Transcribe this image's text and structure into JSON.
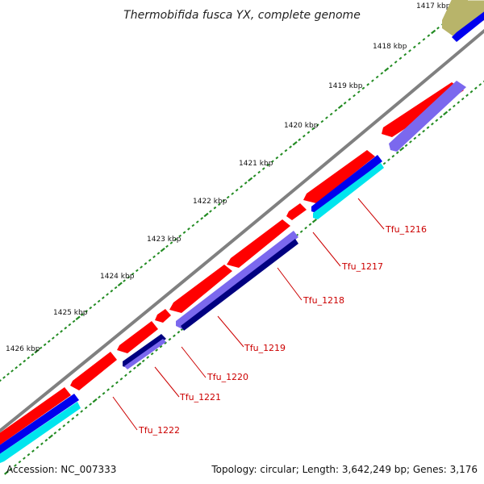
{
  "title": "Thermobifida fusca YX, complete genome",
  "footer": {
    "accession": "Accession: NC_007333",
    "summary": "Topology: circular; Length: 3,642,249 bp; Genes: 3,176"
  },
  "kbp_labels": [
    "1417 kbp",
    "1418 kbp",
    "1419 kbp",
    "1420 kbp",
    "1421 kbp",
    "1422 kbp",
    "1423 kbp",
    "1424 kbp",
    "1425 kbp",
    "1426 kbp"
  ],
  "genes": [
    "Tfu_1216",
    "Tfu_1217",
    "Tfu_1218",
    "Tfu_1219",
    "Tfu_1220",
    "Tfu_1221",
    "Tfu_1222"
  ],
  "colors": {
    "forward_gene": "#ff0000",
    "backbone": "#808080",
    "reverse_blue": "#0000ee",
    "reverse_navy": "#000080",
    "reverse_lavender": "#7b68ee",
    "cyan": "#00e5ee",
    "olive": "#b8b46a",
    "tick_green": "#228b22",
    "label_red": "#cc0000"
  }
}
